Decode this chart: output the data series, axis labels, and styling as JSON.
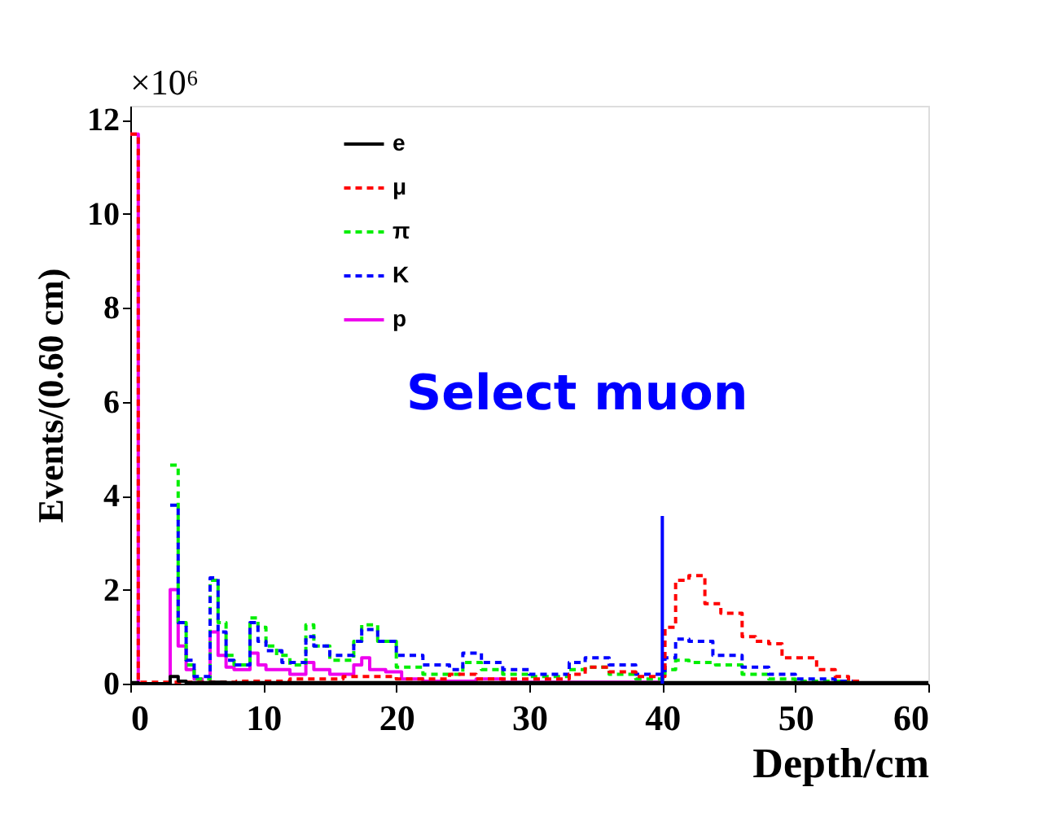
{
  "chart_data": {
    "type": "step",
    "xlabel": "Depth/cm",
    "ylabel": "Events/(0.60 cm)",
    "annotations": [
      "×10⁶",
      "Select muon"
    ],
    "xlim": [
      0,
      60
    ],
    "xticks": [
      0,
      10,
      20,
      30,
      40,
      50,
      60
    ],
    "ylim": [
      0,
      12.3
    ],
    "yticks": [
      0,
      2,
      4,
      6,
      8,
      10,
      12
    ],
    "grid": false,
    "legend": "top left",
    "ref_lines": [
      {
        "axis": "x",
        "value": 40,
        "color": "#0000ff",
        "line_style": "solid"
      }
    ],
    "series": [
      {
        "name": "e",
        "color": "#000000",
        "line_style": "solid",
        "x": [
          0,
          0.6,
          3.0,
          3.6,
          4.2,
          6.0,
          7.2,
          60
        ],
        "values": [
          0.02,
          0.0,
          0.15,
          0.05,
          0.02,
          0.03,
          0.02,
          0.02
        ]
      },
      {
        "name": "μ",
        "color": "#ff0000",
        "line_style": "dashed",
        "x": [
          0,
          0.6,
          8,
          12,
          16,
          20,
          24,
          26,
          33,
          34.2,
          36,
          38,
          40.2,
          41,
          42,
          43.2,
          44.4,
          46,
          47,
          48,
          49,
          50,
          51.6,
          53,
          54,
          55,
          60
        ],
        "values": [
          11.7,
          0.03,
          0.05,
          0.1,
          0.15,
          0.1,
          0.2,
          0.1,
          0.2,
          0.35,
          0.25,
          0.15,
          1.2,
          2.2,
          2.3,
          1.7,
          1.5,
          1.0,
          0.9,
          0.85,
          0.55,
          0.55,
          0.3,
          0.15,
          0.05,
          0,
          0
        ]
      },
      {
        "name": "π",
        "color": "#00ee00",
        "line_style": "dashed",
        "x": [
          3.0,
          3.6,
          4.2,
          4.8,
          6.0,
          6.6,
          7.2,
          7.8,
          9.0,
          9.6,
          10.2,
          11,
          12,
          13.2,
          13.8,
          15,
          16.8,
          17.4,
          18.6,
          20,
          22,
          25,
          26.4,
          28,
          30,
          33,
          34.2,
          36,
          38,
          40.2,
          41,
          42,
          44,
          46,
          48,
          50,
          54,
          60
        ],
        "values": [
          4.65,
          1.3,
          0.4,
          0.1,
          2.2,
          1.3,
          0.6,
          0.4,
          1.4,
          1.2,
          0.8,
          0.6,
          0.4,
          1.25,
          0.8,
          0.5,
          0.9,
          1.25,
          0.9,
          0.35,
          0.2,
          0.45,
          0.3,
          0.2,
          0.15,
          0.3,
          0.35,
          0.2,
          0.1,
          0.3,
          0.5,
          0.45,
          0.4,
          0.2,
          0.1,
          0.05,
          0,
          0
        ]
      },
      {
        "name": "K",
        "color": "#0000ff",
        "line_style": "dashed",
        "x": [
          3.0,
          3.6,
          4.2,
          4.8,
          6.0,
          6.6,
          7.2,
          7.8,
          9.0,
          9.6,
          10.2,
          11.4,
          13.2,
          13.8,
          15,
          16.8,
          17.4,
          18.6,
          20,
          22,
          24,
          25,
          26.4,
          28,
          30,
          33,
          34.2,
          36,
          38,
          40.2,
          41,
          42,
          43.8,
          46,
          48,
          50,
          53,
          55,
          60
        ],
        "values": [
          3.8,
          1.3,
          0.5,
          0.15,
          2.25,
          1.1,
          0.5,
          0.4,
          1.3,
          0.9,
          0.7,
          0.45,
          1.0,
          0.8,
          0.6,
          0.9,
          1.15,
          0.9,
          0.6,
          0.4,
          0.3,
          0.65,
          0.45,
          0.3,
          0.2,
          0.45,
          0.55,
          0.4,
          0.2,
          0.55,
          0.95,
          0.9,
          0.6,
          0.35,
          0.2,
          0.1,
          0.05,
          0,
          0
        ]
      },
      {
        "name": "p",
        "color": "#ee00ee",
        "line_style": "solid",
        "x": [
          0,
          0.6,
          3.0,
          3.6,
          4.2,
          4.8,
          5.4,
          6.0,
          6.6,
          7.2,
          7.8,
          9.0,
          9.6,
          10.2,
          12,
          13.2,
          13.8,
          15,
          16.8,
          17.4,
          18,
          19.2,
          20.4,
          22,
          26,
          28,
          40,
          60
        ],
        "values": [
          11.7,
          0,
          2.0,
          0.8,
          0.3,
          0.1,
          0,
          1.1,
          0.6,
          0.35,
          0.3,
          0.65,
          0.4,
          0.3,
          0.2,
          0.45,
          0.3,
          0.2,
          0.4,
          0.55,
          0.3,
          0.25,
          0.1,
          0.05,
          0.1,
          0.03,
          0,
          0
        ]
      }
    ]
  }
}
